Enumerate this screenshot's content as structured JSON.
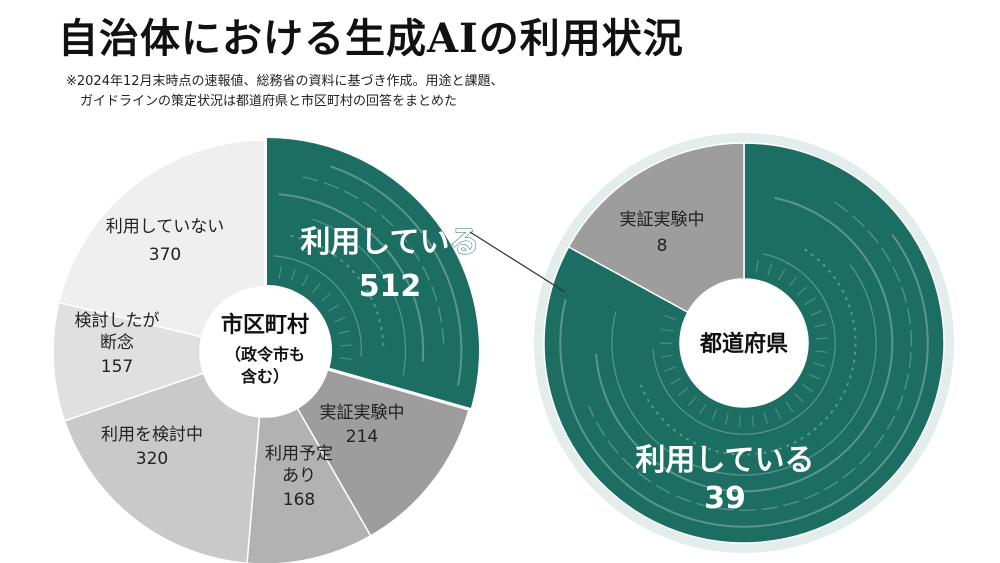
{
  "header": {
    "title": "自治体における生成AIの利用状況",
    "note_line1": "※2024年12月末時点の速報値、総務省の資料に基づき作成。用途と課題、",
    "note_line2": "ガイドラインの策定状況は都道府県と市区町村の回答をまとめた"
  },
  "colors": {
    "teal": "#1c6e62",
    "gray_dark": "#9d9d9d",
    "gray_mid": "#b2b2b2",
    "gray_light": "#c9c9c9",
    "gray_pale": "#e0e0e0",
    "gray_lightest": "#efefef"
  },
  "chart_data": [
    {
      "type": "pie",
      "center_label": [
        "市区町村",
        "（政令市も",
        "含む）"
      ],
      "slices": [
        {
          "label": "利用している",
          "value": 512,
          "color": "#1c6e62"
        },
        {
          "label": "実証実験中",
          "value": 214,
          "color": "#9d9d9d"
        },
        {
          "label": "利用予定あり",
          "value": 168,
          "color": "#b2b2b2"
        },
        {
          "label": "利用を検討中",
          "value": 320,
          "color": "#c9c9c9"
        },
        {
          "label": "検討したが断念",
          "value": 157,
          "color": "#e0e0e0"
        },
        {
          "label": "利用していない",
          "value": 370,
          "color": "#efefef"
        }
      ]
    },
    {
      "type": "pie",
      "center_label": [
        "都道府県"
      ],
      "slices": [
        {
          "label": "利用している",
          "value": 39,
          "color": "#1c6e62"
        },
        {
          "label": "実証実験中",
          "value": 8,
          "color": "#9d9d9d"
        }
      ]
    }
  ]
}
